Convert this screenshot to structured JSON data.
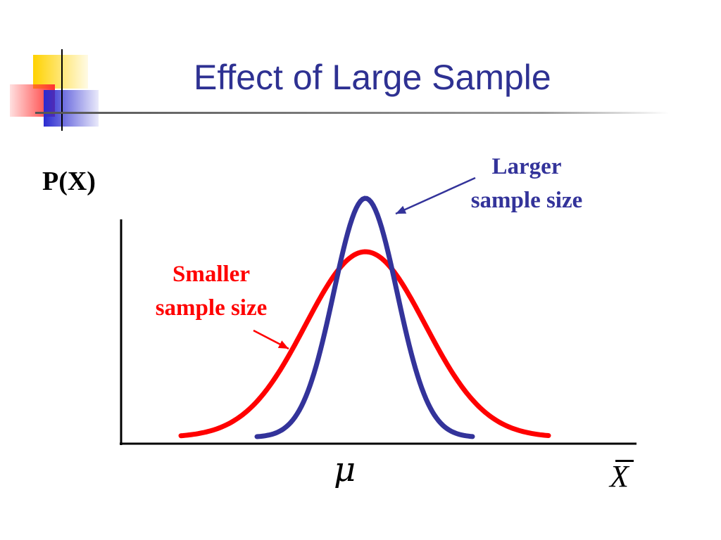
{
  "title": "Effect of Large Sample",
  "y_axis_label": "P(X)",
  "x_axis_labels": {
    "mean_symbol": "μ",
    "variable": "X"
  },
  "callouts": {
    "larger": {
      "line1": "Larger",
      "line2": "sample size"
    },
    "smaller": {
      "line1": "Smaller",
      "line2": "sample size"
    }
  },
  "colors": {
    "title": "#2e3192",
    "larger_curve": "#33339a",
    "smaller_curve": "#ff0000",
    "axis": "#000000",
    "deco_yellow": "#ffd200",
    "deco_red": "#ff3030",
    "deco_blue": "#2a2ad0"
  },
  "curves": [
    {
      "name": "Larger sample size",
      "color_key": "larger_curve",
      "mean": 0,
      "sd": 0.45
    },
    {
      "name": "Smaller sample size",
      "color_key": "smaller_curve",
      "mean": 0,
      "sd": 0.85
    }
  ]
}
